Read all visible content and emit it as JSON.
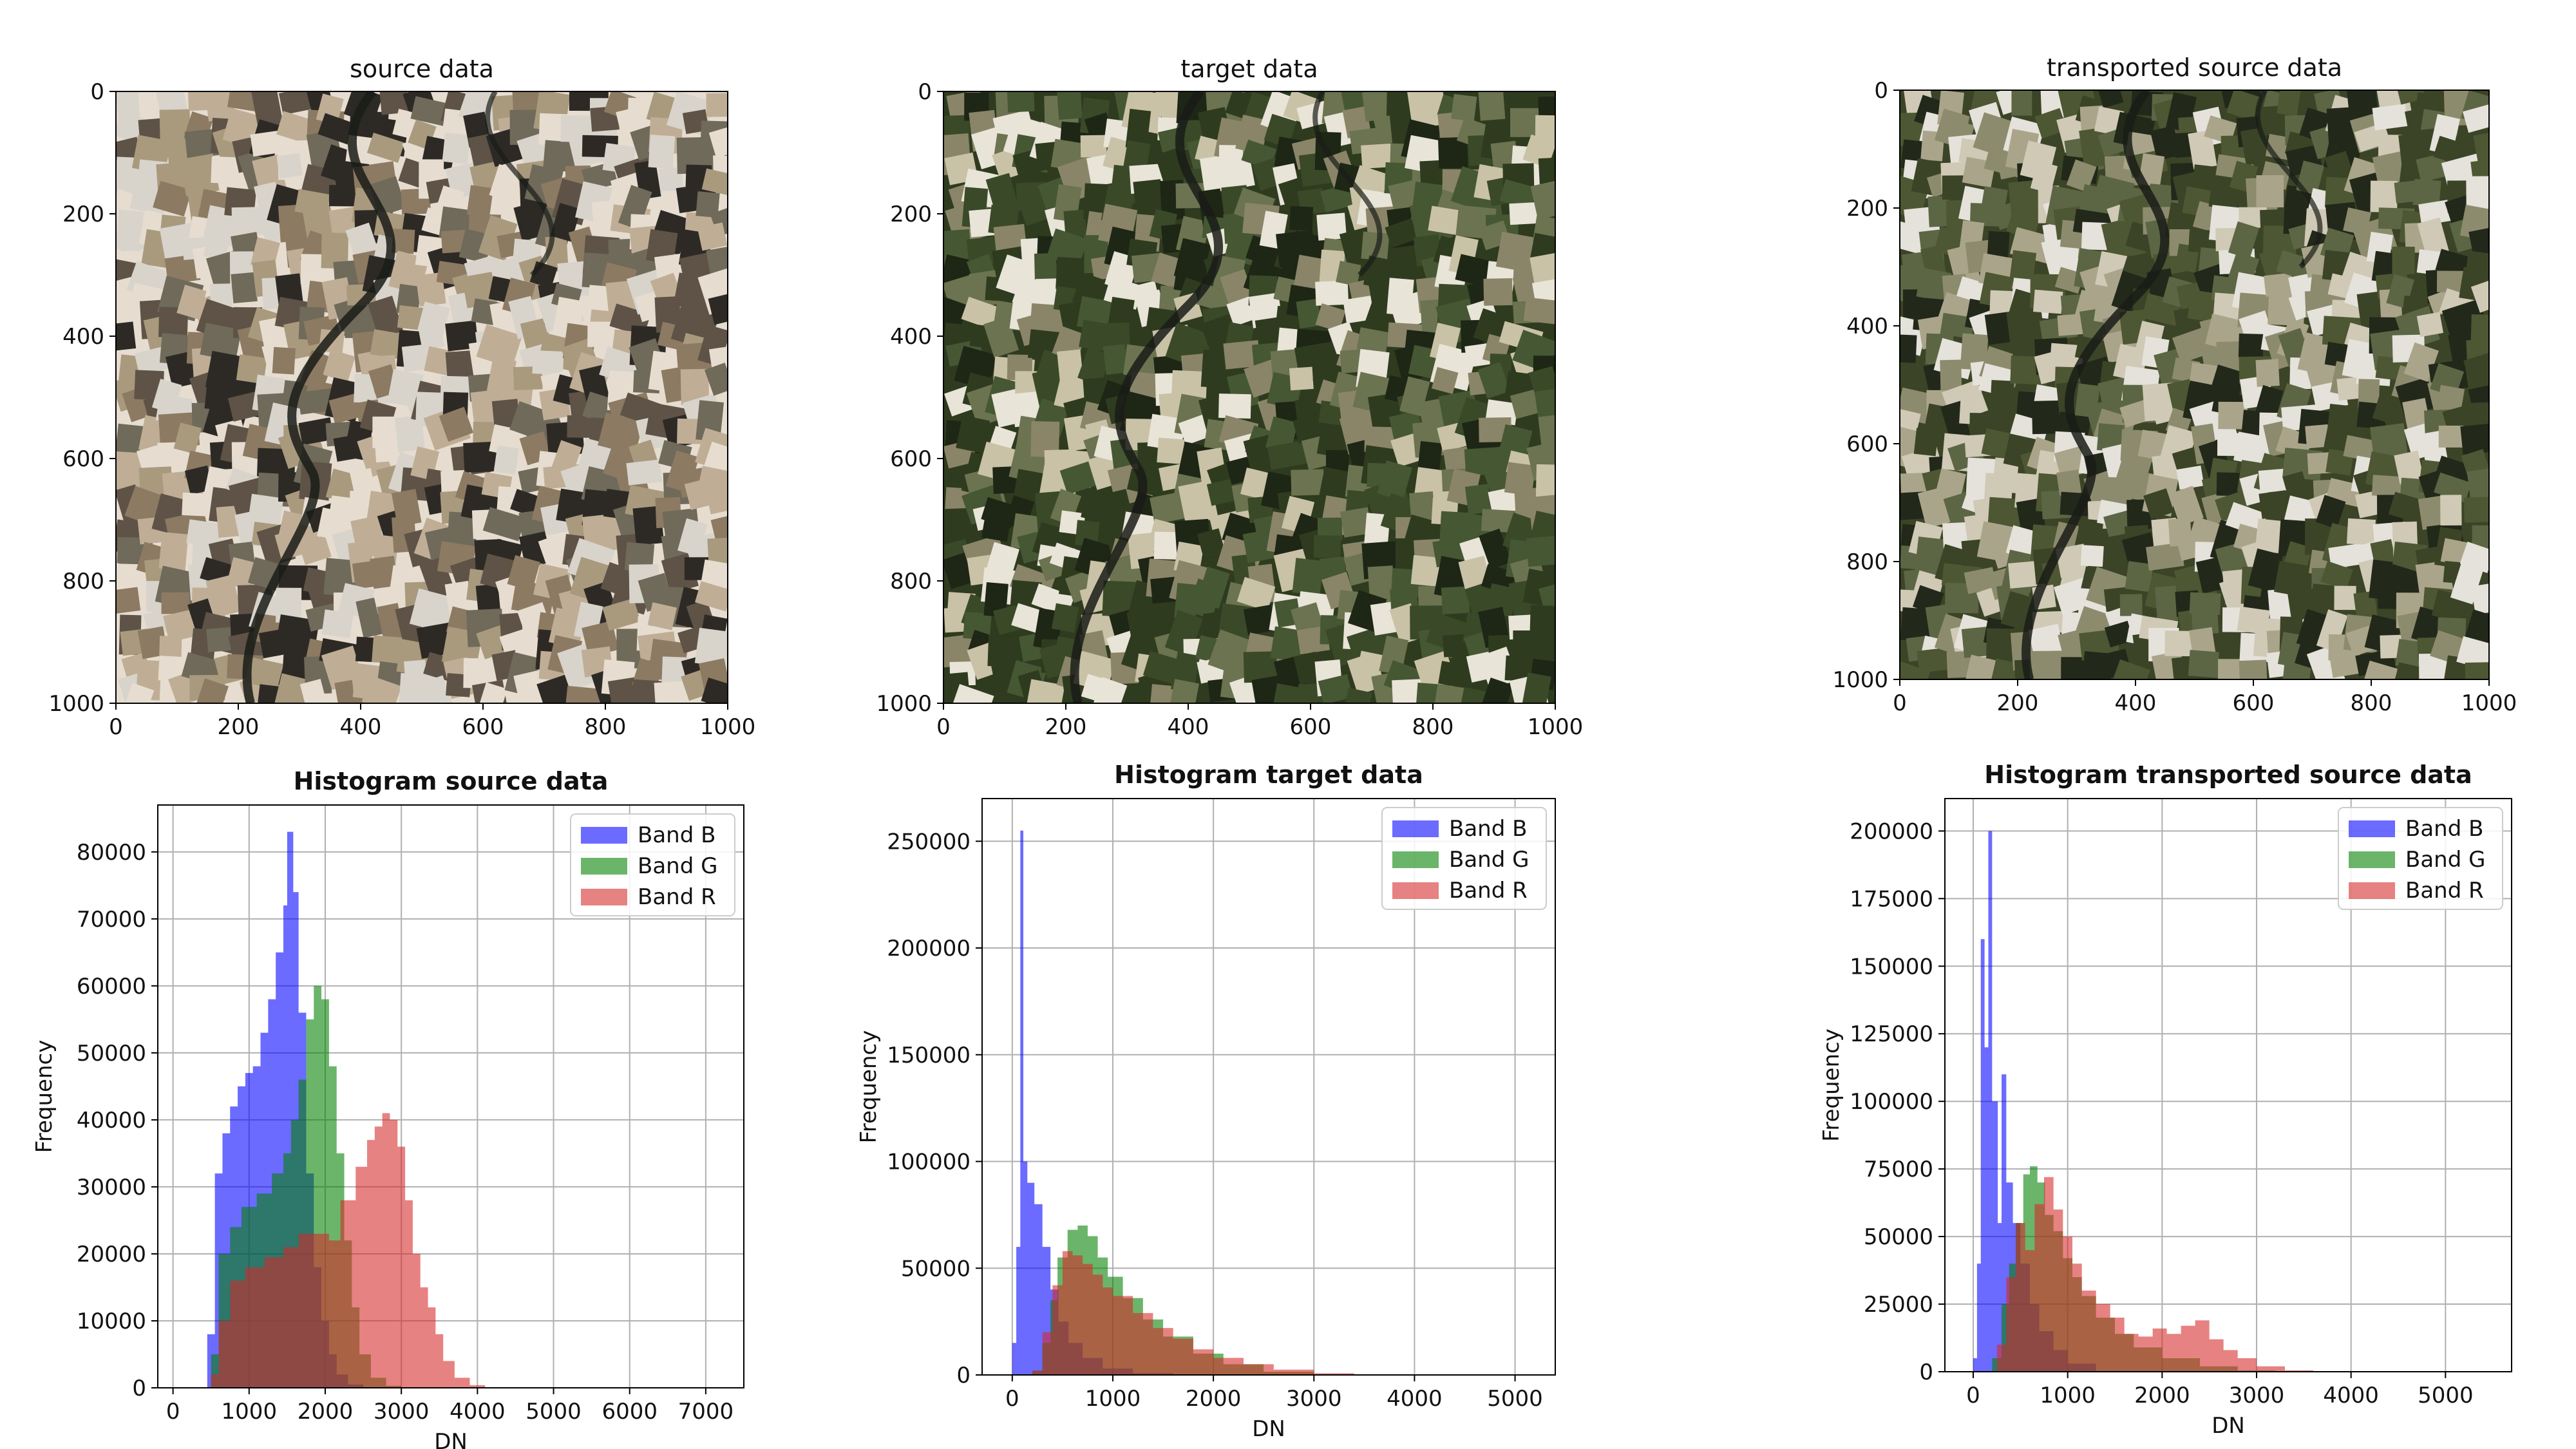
{
  "colors": {
    "band_b": "#0000ff",
    "band_g": "#008000",
    "band_r": "#d62728",
    "grid": "#b0b0b0",
    "axis": "#000000"
  },
  "chart_data": [
    {
      "type": "image",
      "title": "source data",
      "xlim": [
        0,
        1000
      ],
      "ylim": [
        1000,
        0
      ],
      "xticks": [
        0,
        200,
        400,
        600,
        800,
        1000
      ],
      "yticks": [
        0,
        200,
        400,
        600,
        800,
        1000
      ],
      "palette": [
        "#e6ddd0",
        "#bfae95",
        "#8c7a62",
        "#5e5346",
        "#2d2a26",
        "#d8d4cc",
        "#a99a7e",
        "#6f6a5a"
      ]
    },
    {
      "type": "image",
      "title": "target data",
      "xlim": [
        0,
        1000
      ],
      "ylim": [
        1000,
        0
      ],
      "xticks": [
        0,
        200,
        400,
        600,
        800,
        1000
      ],
      "yticks": [
        0,
        200,
        400,
        600,
        800,
        1000
      ],
      "palette": [
        "#2e3b1f",
        "#465733",
        "#1e2616",
        "#6b7350",
        "#c9c2a6",
        "#8a8568",
        "#3a4a28",
        "#e8e4d8"
      ]
    },
    {
      "type": "image",
      "title": "transported source data",
      "xlim": [
        0,
        1000
      ],
      "ylim": [
        1000,
        0
      ],
      "xticks": [
        0,
        200,
        400,
        600,
        800,
        1000
      ],
      "yticks": [
        0,
        200,
        400,
        600,
        800,
        1000
      ],
      "palette": [
        "#3b4426",
        "#5c6644",
        "#22281a",
        "#8d8b6e",
        "#cfc9b6",
        "#aaa58a",
        "#4d5733",
        "#e4e2da"
      ]
    },
    {
      "type": "histogram",
      "title": "Histogram source data",
      "xlabel": "DN",
      "ylabel": "Frequency",
      "xlim": [
        -200,
        7500
      ],
      "ylim": [
        0,
        87000
      ],
      "xticks": [
        0,
        1000,
        2000,
        3000,
        4000,
        5000,
        6000,
        7000
      ],
      "yticks": [
        0,
        10000,
        20000,
        30000,
        40000,
        50000,
        60000,
        70000,
        80000
      ],
      "grid": true,
      "legend_position": "top-right",
      "series": [
        {
          "name": "Band B",
          "color_key": "band_b",
          "points": [
            [
              0,
              0
            ],
            [
              350,
              0
            ],
            [
              450,
              8000
            ],
            [
              550,
              32000
            ],
            [
              650,
              38000
            ],
            [
              750,
              42000
            ],
            [
              850,
              45000
            ],
            [
              950,
              47000
            ],
            [
              1050,
              48000
            ],
            [
              1150,
              53000
            ],
            [
              1250,
              58000
            ],
            [
              1350,
              65000
            ],
            [
              1450,
              72000
            ],
            [
              1500,
              83000
            ],
            [
              1580,
              74000
            ],
            [
              1650,
              56000
            ],
            [
              1750,
              32000
            ],
            [
              1850,
              18000
            ],
            [
              1950,
              10000
            ],
            [
              2050,
              5000
            ],
            [
              2150,
              2000
            ],
            [
              2300,
              500
            ],
            [
              2500,
              0
            ]
          ]
        },
        {
          "name": "Band G",
          "color_key": "band_g",
          "points": [
            [
              0,
              0
            ],
            [
              400,
              0
            ],
            [
              500,
              5000
            ],
            [
              600,
              20000
            ],
            [
              750,
              24000
            ],
            [
              900,
              27000
            ],
            [
              1100,
              29000
            ],
            [
              1300,
              32000
            ],
            [
              1450,
              35000
            ],
            [
              1550,
              40000
            ],
            [
              1650,
              46000
            ],
            [
              1750,
              55000
            ],
            [
              1850,
              60000
            ],
            [
              1950,
              58000
            ],
            [
              2050,
              48000
            ],
            [
              2150,
              35000
            ],
            [
              2250,
              22000
            ],
            [
              2350,
              12000
            ],
            [
              2450,
              5000
            ],
            [
              2600,
              1500
            ],
            [
              2800,
              300
            ],
            [
              3000,
              0
            ]
          ]
        },
        {
          "name": "Band R",
          "color_key": "band_r",
          "points": [
            [
              0,
              0
            ],
            [
              400,
              0
            ],
            [
              500,
              2000
            ],
            [
              600,
              10000
            ],
            [
              750,
              16000
            ],
            [
              950,
              18000
            ],
            [
              1200,
              19500
            ],
            [
              1450,
              21000
            ],
            [
              1650,
              23000
            ],
            [
              1850,
              23000
            ],
            [
              2050,
              22000
            ],
            [
              2200,
              28000
            ],
            [
              2400,
              33000
            ],
            [
              2550,
              37000
            ],
            [
              2650,
              39000
            ],
            [
              2750,
              41000
            ],
            [
              2850,
              40000
            ],
            [
              2950,
              36000
            ],
            [
              3050,
              28000
            ],
            [
              3150,
              20000
            ],
            [
              3250,
              15000
            ],
            [
              3350,
              12000
            ],
            [
              3450,
              8000
            ],
            [
              3550,
              4000
            ],
            [
              3700,
              1500
            ],
            [
              3900,
              400
            ],
            [
              4100,
              0
            ]
          ]
        }
      ]
    },
    {
      "type": "histogram",
      "title": "Histogram target data",
      "xlabel": "DN",
      "ylabel": "Frequency",
      "xlim": [
        -300,
        5400
      ],
      "ylim": [
        0,
        270000
      ],
      "xticks": [
        0,
        1000,
        2000,
        3000,
        4000,
        5000
      ],
      "yticks": [
        0,
        50000,
        100000,
        150000,
        200000,
        250000
      ],
      "grid": true,
      "legend_position": "top-right",
      "series": [
        {
          "name": "Band B",
          "color_key": "band_b",
          "points": [
            [
              -100,
              0
            ],
            [
              0,
              15000
            ],
            [
              40,
              60000
            ],
            [
              80,
              255000
            ],
            [
              110,
              100000
            ],
            [
              150,
              90000
            ],
            [
              220,
              80000
            ],
            [
              300,
              60000
            ],
            [
              380,
              40000
            ],
            [
              460,
              25000
            ],
            [
              560,
              15000
            ],
            [
              700,
              8000
            ],
            [
              900,
              3000
            ],
            [
              1200,
              800
            ],
            [
              1600,
              0
            ]
          ]
        },
        {
          "name": "Band G",
          "color_key": "band_g",
          "points": [
            [
              0,
              0
            ],
            [
              200,
              2000
            ],
            [
              300,
              15000
            ],
            [
              380,
              35000
            ],
            [
              450,
              55000
            ],
            [
              550,
              68000
            ],
            [
              650,
              70000
            ],
            [
              750,
              65000
            ],
            [
              850,
              55000
            ],
            [
              950,
              46000
            ],
            [
              1100,
              36000
            ],
            [
              1300,
              26000
            ],
            [
              1500,
              18000
            ],
            [
              1800,
              10000
            ],
            [
              2100,
              5000
            ],
            [
              2500,
              1500
            ],
            [
              3000,
              300
            ],
            [
              3300,
              0
            ]
          ]
        },
        {
          "name": "Band R",
          "color_key": "band_r",
          "points": [
            [
              0,
              0
            ],
            [
              200,
              2000
            ],
            [
              300,
              20000
            ],
            [
              400,
              42000
            ],
            [
              500,
              58000
            ],
            [
              600,
              56000
            ],
            [
              700,
              52000
            ],
            [
              800,
              47000
            ],
            [
              900,
              41000
            ],
            [
              1000,
              37000
            ],
            [
              1200,
              29000
            ],
            [
              1400,
              22000
            ],
            [
              1600,
              17000
            ],
            [
              1800,
              12000
            ],
            [
              2000,
              8000
            ],
            [
              2300,
              5000
            ],
            [
              2600,
              2500
            ],
            [
              3000,
              800
            ],
            [
              3400,
              0
            ]
          ]
        }
      ]
    },
    {
      "type": "histogram",
      "title": "Histogram transported source data",
      "xlabel": "DN",
      "ylabel": "Frequency",
      "xlim": [
        -300,
        5700
      ],
      "ylim": [
        0,
        212000
      ],
      "xticks": [
        0,
        1000,
        2000,
        3000,
        4000,
        5000
      ],
      "yticks": [
        0,
        25000,
        50000,
        75000,
        100000,
        125000,
        150000,
        175000,
        200000
      ],
      "grid": true,
      "legend_position": "top-right",
      "series": [
        {
          "name": "Band B",
          "color_key": "band_b",
          "points": [
            [
              -100,
              0
            ],
            [
              0,
              5000
            ],
            [
              40,
              40000
            ],
            [
              80,
              160000
            ],
            [
              120,
              120000
            ],
            [
              160,
              200000
            ],
            [
              200,
              100000
            ],
            [
              260,
              55000
            ],
            [
              300,
              110000
            ],
            [
              350,
              70000
            ],
            [
              420,
              55000
            ],
            [
              500,
              40000
            ],
            [
              600,
              25000
            ],
            [
              700,
              15000
            ],
            [
              850,
              8000
            ],
            [
              1000,
              3000
            ],
            [
              1300,
              0
            ]
          ]
        },
        {
          "name": "Band G",
          "color_key": "band_g",
          "points": [
            [
              100,
              0
            ],
            [
              200,
              5000
            ],
            [
              300,
              25000
            ],
            [
              380,
              40000
            ],
            [
              450,
              55000
            ],
            [
              530,
              73000
            ],
            [
              600,
              76000
            ],
            [
              680,
              70000
            ],
            [
              760,
              58000
            ],
            [
              850,
              52000
            ],
            [
              950,
              42000
            ],
            [
              1050,
              35000
            ],
            [
              1150,
              28000
            ],
            [
              1300,
              20000
            ],
            [
              1500,
              14000
            ],
            [
              1700,
              9000
            ],
            [
              2000,
              5000
            ],
            [
              2400,
              2000
            ],
            [
              2800,
              500
            ],
            [
              3200,
              0
            ]
          ]
        },
        {
          "name": "Band R",
          "color_key": "band_r",
          "points": [
            [
              100,
              0
            ],
            [
              250,
              10000
            ],
            [
              350,
              35000
            ],
            [
              450,
              55000
            ],
            [
              550,
              45000
            ],
            [
              650,
              62000
            ],
            [
              750,
              72000
            ],
            [
              850,
              60000
            ],
            [
              950,
              50000
            ],
            [
              1050,
              40000
            ],
            [
              1150,
              30000
            ],
            [
              1300,
              25000
            ],
            [
              1450,
              20000
            ],
            [
              1600,
              14000
            ],
            [
              1750,
              13000
            ],
            [
              1900,
              16000
            ],
            [
              2050,
              14000
            ],
            [
              2200,
              17000
            ],
            [
              2350,
              19000
            ],
            [
              2500,
              12000
            ],
            [
              2650,
              8000
            ],
            [
              2800,
              5000
            ],
            [
              3000,
              2000
            ],
            [
              3300,
              500
            ],
            [
              3600,
              0
            ]
          ]
        }
      ]
    }
  ]
}
